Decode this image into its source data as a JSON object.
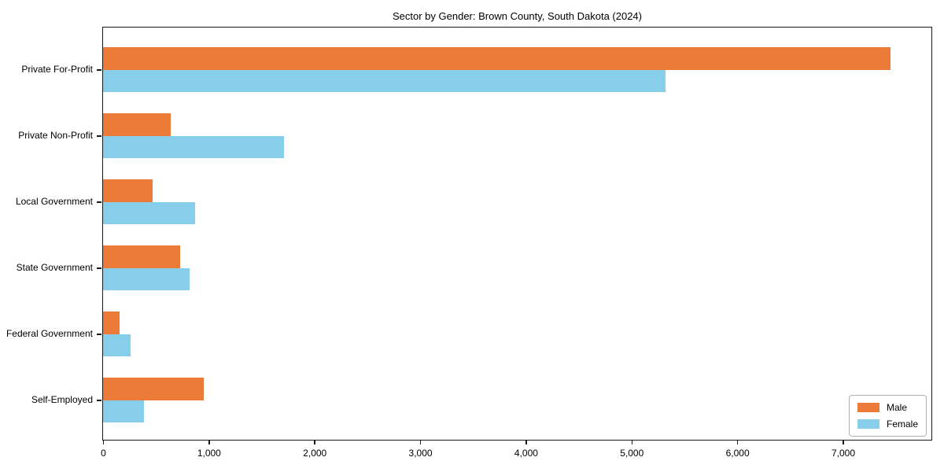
{
  "chart_data": {
    "type": "bar",
    "orientation": "horizontal",
    "title": "Sector by Gender: Brown County, South Dakota (2024)",
    "categories": [
      "Private For-Profit",
      "Private Non-Profit",
      "Local Government",
      "State Government",
      "Federal Government",
      "Self-Employed"
    ],
    "series": [
      {
        "name": "Male",
        "color": "#EC7A38",
        "values": [
          7450,
          640,
          470,
          730,
          160,
          950
        ]
      },
      {
        "name": "Female",
        "color": "#87CEEB",
        "values": [
          5320,
          1710,
          870,
          820,
          260,
          390
        ]
      }
    ],
    "xlabel": "",
    "ylabel": "",
    "xlim": [
      0,
      7830
    ],
    "xticks": [
      0,
      1000,
      2000,
      3000,
      4000,
      5000,
      6000,
      7000
    ],
    "xtick_labels": [
      "0",
      "1,000",
      "2,000",
      "3,000",
      "4,000",
      "5,000",
      "6,000",
      "7,000"
    ],
    "grid": false,
    "legend_position": "lower right"
  },
  "colors": {
    "axis": "#1a1a1a",
    "background": "#ffffff",
    "legend_border": "#b0b0b0"
  }
}
